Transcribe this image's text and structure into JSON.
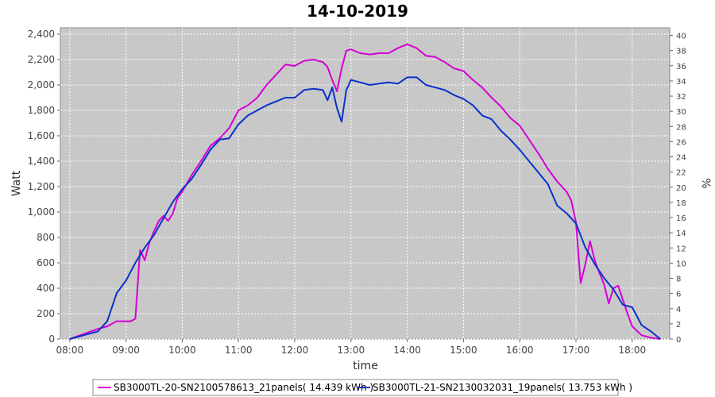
{
  "chart_data": {
    "type": "line",
    "title": "14-10-2019",
    "xlabel": "time",
    "ylabel": "Watt",
    "y2label": "%",
    "xlim": [
      "07:50",
      "18:40"
    ],
    "ylim": [
      0,
      2450
    ],
    "y2lim": [
      0,
      41
    ],
    "x_ticks": [
      "08:00",
      "09:00",
      "10:00",
      "11:00",
      "12:00",
      "13:00",
      "14:00",
      "15:00",
      "16:00",
      "17:00",
      "18:00"
    ],
    "y_ticks": [
      "0",
      "200",
      "400",
      "600",
      "800",
      "1,000",
      "1,200",
      "1,400",
      "1,600",
      "1,800",
      "2,000",
      "2,200",
      "2,400"
    ],
    "y2_ticks": [
      "0",
      "2",
      "4",
      "6",
      "8",
      "10",
      "12",
      "14",
      "16",
      "18",
      "20",
      "22",
      "24",
      "26",
      "28",
      "30",
      "32",
      "34",
      "36",
      "38",
      "40"
    ],
    "grid": true,
    "legend_position": "bottom",
    "series": [
      {
        "name": "SB3000TL-20-SN2100578613_21panels( 14.439 kWh )",
        "color": "#d400d4",
        "x": [
          "08:00",
          "08:15",
          "08:30",
          "08:40",
          "08:50",
          "09:00",
          "09:05",
          "09:10",
          "09:15",
          "09:20",
          "09:25",
          "09:30",
          "09:35",
          "09:40",
          "09:45",
          "09:50",
          "09:55",
          "10:00",
          "10:10",
          "10:20",
          "10:30",
          "10:40",
          "10:50",
          "11:00",
          "11:10",
          "11:20",
          "11:30",
          "11:40",
          "11:50",
          "12:00",
          "12:10",
          "12:20",
          "12:30",
          "12:35",
          "12:40",
          "12:45",
          "12:50",
          "12:55",
          "13:00",
          "13:10",
          "13:20",
          "13:30",
          "13:40",
          "13:50",
          "14:00",
          "14:10",
          "14:20",
          "14:30",
          "14:40",
          "14:50",
          "15:00",
          "15:10",
          "15:20",
          "15:30",
          "15:40",
          "15:50",
          "16:00",
          "16:10",
          "16:20",
          "16:30",
          "16:40",
          "16:50",
          "16:55",
          "17:00",
          "17:05",
          "17:10",
          "17:15",
          "17:20",
          "17:25",
          "17:30",
          "17:35",
          "17:40",
          "17:45",
          "17:50",
          "17:55",
          "18:00",
          "18:10",
          "18:20",
          "18:30"
        ],
        "y": [
          0,
          40,
          80,
          100,
          140,
          140,
          140,
          160,
          700,
          620,
          760,
          850,
          930,
          970,
          930,
          990,
          1110,
          1160,
          1290,
          1400,
          1520,
          1580,
          1660,
          1800,
          1840,
          1900,
          2000,
          2080,
          2160,
          2150,
          2190,
          2200,
          2180,
          2140,
          2040,
          1950,
          2130,
          2270,
          2280,
          2250,
          2240,
          2250,
          2250,
          2290,
          2320,
          2290,
          2230,
          2220,
          2180,
          2130,
          2110,
          2040,
          1980,
          1900,
          1830,
          1740,
          1680,
          1570,
          1460,
          1340,
          1240,
          1160,
          1090,
          920,
          440,
          590,
          770,
          620,
          520,
          430,
          280,
          400,
          420,
          310,
          200,
          100,
          30,
          10,
          0
        ]
      },
      {
        "name": "SB3000TL-21-SN2130032031_19panels( 13.753 kWh )",
        "color": "#0a32c8",
        "x": [
          "08:00",
          "08:15",
          "08:30",
          "08:40",
          "08:50",
          "09:00",
          "09:10",
          "09:20",
          "09:30",
          "09:40",
          "09:50",
          "10:00",
          "10:10",
          "10:20",
          "10:30",
          "10:40",
          "10:50",
          "11:00",
          "11:10",
          "11:20",
          "11:30",
          "11:40",
          "11:50",
          "12:00",
          "12:10",
          "12:20",
          "12:30",
          "12:35",
          "12:40",
          "12:45",
          "12:50",
          "12:55",
          "13:00",
          "13:10",
          "13:20",
          "13:30",
          "13:40",
          "13:50",
          "14:00",
          "14:10",
          "14:20",
          "14:30",
          "14:40",
          "14:50",
          "15:00",
          "15:10",
          "15:20",
          "15:30",
          "15:40",
          "15:50",
          "16:00",
          "16:10",
          "16:20",
          "16:30",
          "16:40",
          "16:50",
          "17:00",
          "17:10",
          "17:20",
          "17:30",
          "17:40",
          "17:50",
          "18:00",
          "18:10",
          "18:20",
          "18:30"
        ],
        "y": [
          0,
          30,
          60,
          140,
          360,
          460,
          600,
          720,
          820,
          950,
          1080,
          1180,
          1260,
          1370,
          1490,
          1570,
          1580,
          1690,
          1760,
          1800,
          1840,
          1870,
          1900,
          1900,
          1960,
          1970,
          1960,
          1880,
          1980,
          1820,
          1710,
          1960,
          2040,
          2020,
          2000,
          2010,
          2020,
          2010,
          2060,
          2060,
          2000,
          1980,
          1960,
          1920,
          1890,
          1840,
          1760,
          1730,
          1640,
          1570,
          1490,
          1400,
          1310,
          1220,
          1050,
          990,
          910,
          720,
          590,
          480,
          390,
          270,
          250,
          110,
          60,
          0
        ]
      }
    ]
  }
}
